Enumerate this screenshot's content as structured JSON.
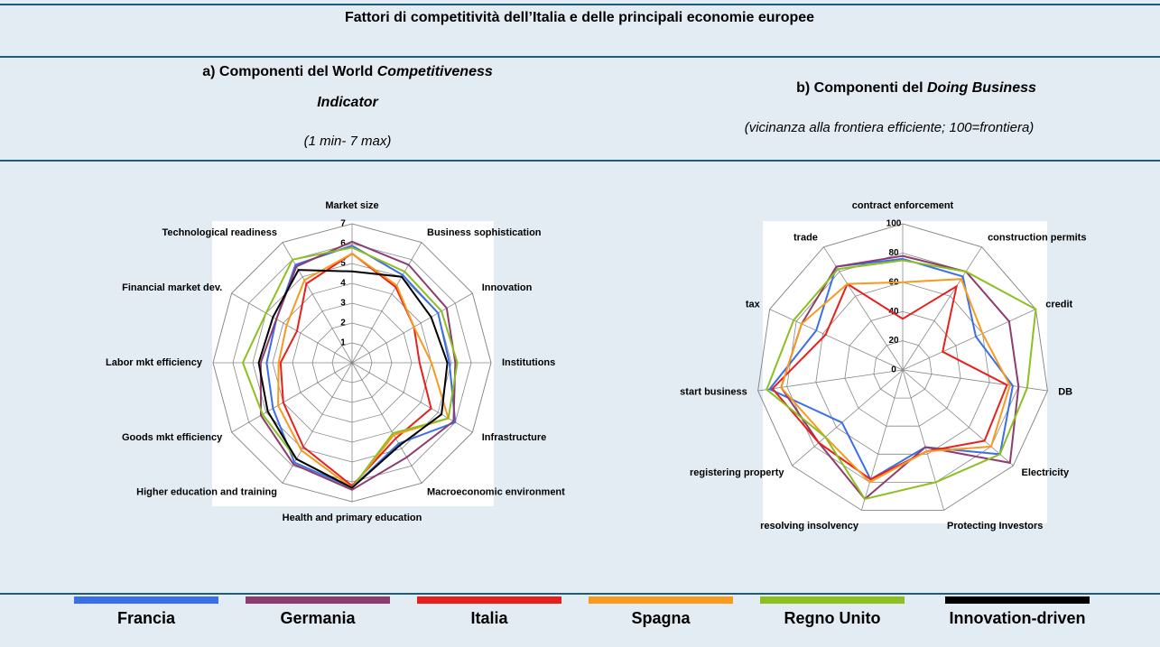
{
  "title": "Fattori di competitività dell’Italia e delle principali economie europee",
  "chart_data": [
    {
      "type": "radar",
      "title": [
        "a) Componenti del World",
        "Competitiveness",
        "Indicator"
      ],
      "subtitle": "(1 min- 7 max)",
      "categories": [
        "Market size",
        "Business sophistication",
        "Innovation",
        "Institutions",
        "Infrastructure",
        "Macroeconomic environment",
        "Health and primary education",
        "Higher education and training",
        "Goods mkt efficiency",
        "Labor mkt efficiency",
        "Financial market dev.",
        "Technological readiness"
      ],
      "rlim": [
        0,
        7
      ],
      "rticks": [
        1,
        2,
        3,
        4,
        5,
        6,
        7
      ],
      "grid": true,
      "series": [
        {
          "name": "Francia",
          "color": "#3a6fe8",
          "values": [
            5.9,
            5.1,
            5.0,
            4.9,
            6.0,
            4.7,
            6.3,
            5.8,
            4.6,
            4.3,
            4.4,
            5.7
          ]
        },
        {
          "name": "Germania",
          "color": "#8e3b6e",
          "values": [
            6.1,
            5.7,
            5.5,
            5.2,
            5.9,
            5.5,
            6.4,
            5.9,
            5.3,
            4.6,
            4.4,
            5.6
          ]
        },
        {
          "name": "Italia",
          "color": "#e8201c",
          "values": [
            5.5,
            4.4,
            3.6,
            3.4,
            4.6,
            4.4,
            6.2,
            4.9,
            4.0,
            3.6,
            3.2,
            4.6
          ]
        },
        {
          "name": "Spagna",
          "color": "#f79a1e",
          "values": [
            5.5,
            4.5,
            3.6,
            4.0,
            5.6,
            4.2,
            6.3,
            5.1,
            4.3,
            3.7,
            3.8,
            4.8
          ]
        },
        {
          "name": "Regno Unito",
          "color": "#8dbf1e",
          "values": [
            5.8,
            5.3,
            5.2,
            5.3,
            5.6,
            4.1,
            6.3,
            5.6,
            5.2,
            5.5,
            5.0,
            6.0
          ]
        },
        {
          "name": "Innovation-driven",
          "color": "#000000",
          "values": [
            4.6,
            5.0,
            4.6,
            4.8,
            5.2,
            4.8,
            6.3,
            5.6,
            4.9,
            4.7,
            4.6,
            5.4
          ]
        }
      ]
    },
    {
      "type": "radar",
      "title": [
        "b) Componenti del",
        "Doing Business"
      ],
      "subtitle": "(vicinanza alla frontiera efficiente; 100=frontiera)",
      "categories": [
        "contract enforcement",
        "construction permits",
        "credit",
        "DB",
        "Electricity",
        "Protecting Investors",
        "resolving insolvency",
        "registering property",
        "start business",
        "tax",
        "trade"
      ],
      "rlim": [
        0,
        100
      ],
      "rticks": [
        0,
        20,
        40,
        60,
        80,
        100
      ],
      "grid": true,
      "series": [
        {
          "name": "Francia",
          "color": "#3a6fe8",
          "values": [
            76,
            76,
            55,
            76,
            88,
            55,
            78,
            55,
            92,
            65,
            84
          ]
        },
        {
          "name": "Germania",
          "color": "#8e3b6e",
          "values": [
            78,
            80,
            80,
            80,
            97,
            55,
            92,
            76,
            84,
            76,
            84
          ]
        },
        {
          "name": "Italia",
          "color": "#e8201c",
          "values": [
            35,
            68,
            30,
            72,
            74,
            58,
            78,
            76,
            90,
            58,
            70
          ]
        },
        {
          "name": "Spagna",
          "color": "#f79a1e",
          "values": [
            60,
            74,
            60,
            74,
            80,
            58,
            80,
            70,
            84,
            76,
            70
          ]
        },
        {
          "name": "Regno Unito",
          "color": "#8dbf1e",
          "values": [
            75,
            80,
            100,
            86,
            88,
            80,
            92,
            70,
            94,
            82,
            82
          ]
        }
      ]
    }
  ]
}
